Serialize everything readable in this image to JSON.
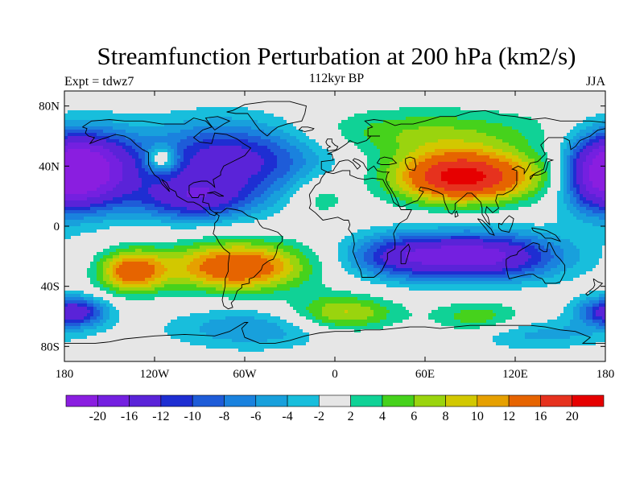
{
  "header": {
    "title": "Streamfunction Perturbation at 200 hPa (km2/s)",
    "expt": "Expt = tdwz7",
    "subtitle": "112kyr BP",
    "season": "JJA"
  },
  "map": {
    "projection": "cylindrical-equidistant",
    "lon_range": [
      -180,
      180
    ],
    "lat_range": [
      -90,
      90
    ],
    "lat_ticks": [
      "80N",
      "40N",
      "0",
      "40S",
      "80S"
    ],
    "lat_tick_values": [
      80,
      40,
      0,
      -40,
      -80
    ],
    "lon_ticks": [
      "180",
      "120W",
      "60W",
      "0",
      "60E",
      "120E",
      "180"
    ],
    "lon_tick_values": [
      -180,
      -120,
      -60,
      0,
      60,
      120,
      180
    ],
    "background_color": "#e6e6e6",
    "coastline_color": "#000000"
  },
  "colorbar": {
    "labels": [
      "-20",
      "-16",
      "-12",
      "-10",
      "-8",
      "-6",
      "-4",
      "-2",
      "2",
      "4",
      "6",
      "8",
      "10",
      "12",
      "16",
      "20"
    ],
    "colors": [
      "#8a1ee0",
      "#7420e0",
      "#5a23d8",
      "#1e2ed2",
      "#1e5cd8",
      "#1a82de",
      "#18a0dc",
      "#18bedc",
      "#e6e6e6",
      "#10d296",
      "#46d21c",
      "#9ad40e",
      "#d2c800",
      "#e6a000",
      "#e66400",
      "#e6321e",
      "#e60000"
    ]
  },
  "chart_data": {
    "type": "heatmap",
    "title": "Streamfunction Perturbation at 200 hPa (km2/s)",
    "subtitle": "112kyr BP",
    "units": "km2/s",
    "season": "JJA",
    "levels": [
      -20,
      -16,
      -12,
      -10,
      -8,
      -6,
      -4,
      -2,
      2,
      4,
      6,
      8,
      10,
      12,
      16,
      20
    ],
    "features": [
      {
        "kind": "low",
        "lon": -70,
        "lat": 45,
        "amp": -14,
        "rlon": 60,
        "rlat": 25
      },
      {
        "kind": "low",
        "lon": -95,
        "lat": 18,
        "amp": -12,
        "rlon": 40,
        "rlat": 15
      },
      {
        "kind": "low",
        "lon": -160,
        "lat": 38,
        "amp": -16,
        "rlon": 30,
        "rlat": 25
      },
      {
        "kind": "low",
        "lon": 175,
        "lat": 35,
        "amp": -18,
        "rlon": 28,
        "rlat": 25
      },
      {
        "kind": "high",
        "lon": -115,
        "lat": 45,
        "amp": 10,
        "rlon": 10,
        "rlat": 8
      },
      {
        "kind": "high",
        "lon": -65,
        "lat": -27,
        "amp": 16,
        "rlon": 45,
        "rlat": 16
      },
      {
        "kind": "high",
        "lon": -135,
        "lat": -30,
        "amp": 14,
        "rlon": 22,
        "rlat": 14
      },
      {
        "kind": "high",
        "lon": 85,
        "lat": 33,
        "amp": 22,
        "rlon": 45,
        "rlat": 17
      },
      {
        "kind": "high",
        "lon": 60,
        "lat": 62,
        "amp": 6,
        "rlon": 85,
        "rlat": 16
      },
      {
        "kind": "high",
        "lon": 150,
        "lat": 35,
        "amp": 4,
        "rlon": 25,
        "rlat": 18
      },
      {
        "kind": "high",
        "lon": -10,
        "lat": 20,
        "amp": 4,
        "rlon": 20,
        "rlat": 15
      },
      {
        "kind": "low",
        "lon": 95,
        "lat": -20,
        "amp": -18,
        "rlon": 55,
        "rlat": 16
      },
      {
        "kind": "low",
        "lon": 40,
        "lat": -20,
        "amp": -8,
        "rlon": 35,
        "rlat": 15
      },
      {
        "kind": "low",
        "lon": -170,
        "lat": -57,
        "amp": -8,
        "rlon": 20,
        "rlat": 10
      },
      {
        "kind": "low",
        "lon": 180,
        "lat": -57,
        "amp": -8,
        "rlon": 22,
        "rlat": 10
      },
      {
        "kind": "low",
        "lon": -55,
        "lat": -68,
        "amp": -6,
        "rlon": 55,
        "rlat": 14
      },
      {
        "kind": "low",
        "lon": 130,
        "lat": -72,
        "amp": -5,
        "rlon": 55,
        "rlat": 10
      },
      {
        "kind": "high",
        "lon": 5,
        "lat": -58,
        "amp": 9,
        "rlon": 35,
        "rlat": 12
      },
      {
        "kind": "high",
        "lon": 95,
        "lat": -62,
        "amp": 6,
        "rlon": 30,
        "rlat": 12
      }
    ]
  }
}
